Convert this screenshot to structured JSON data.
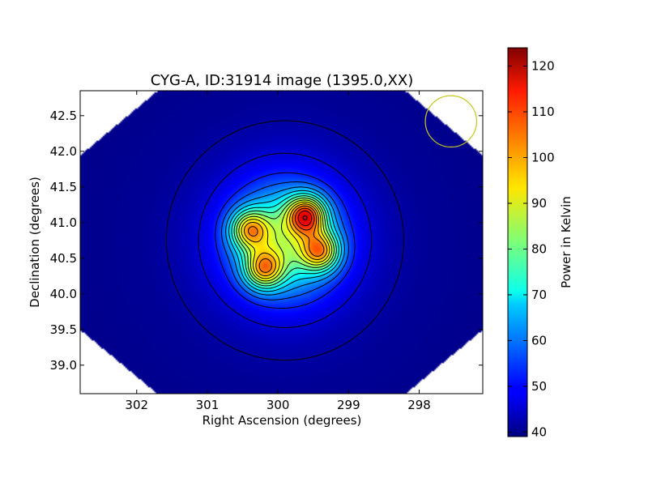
{
  "chart_data": {
    "type": "heatmap",
    "title": "CYG-A, ID:31914 image (1395.0,XX)",
    "xlabel": "Right Ascension (degrees)",
    "ylabel": "Declination (degrees)",
    "xlim": [
      302.8,
      297.1
    ],
    "ylim": [
      38.6,
      42.85
    ],
    "x_ticks": [
      302,
      301,
      300,
      299,
      298
    ],
    "y_ticks": [
      39.0,
      39.5,
      40.0,
      40.5,
      41.0,
      41.5,
      42.0,
      42.5
    ],
    "x_tick_labels": [
      "302",
      "301",
      "300",
      "299",
      "298"
    ],
    "y_tick_labels": [
      "39.0",
      "39.5",
      "40.0",
      "40.5",
      "41.0",
      "41.5",
      "42.0",
      "42.5"
    ],
    "colormap": "jet",
    "colorbar": {
      "label": "Power in Kelvin",
      "range": [
        39,
        124
      ],
      "ticks": [
        40,
        50,
        60,
        70,
        80,
        90,
        100,
        110,
        120
      ],
      "tick_labels": [
        "40",
        "50",
        "60",
        "70",
        "80",
        "90",
        "100",
        "110",
        "120"
      ]
    },
    "background_level": 40,
    "sources": [
      {
        "ra": 299.6,
        "dec": 41.1,
        "peak": 124
      },
      {
        "ra": 299.4,
        "dec": 40.6,
        "peak": 115
      },
      {
        "ra": 300.4,
        "dec": 40.9,
        "peak": 113
      },
      {
        "ra": 300.2,
        "dec": 40.35,
        "peak": 114
      }
    ],
    "contour_levels": [
      42,
      46,
      52,
      57,
      62,
      67,
      72,
      77,
      82,
      87,
      92,
      97,
      102,
      107,
      112,
      117
    ],
    "grid": false,
    "legend": "none",
    "beam_marker": {
      "ra": 297.55,
      "dec": 42.42,
      "radius_deg": 0.36,
      "color": "#c8c81e"
    },
    "contour_color": "#000000"
  }
}
